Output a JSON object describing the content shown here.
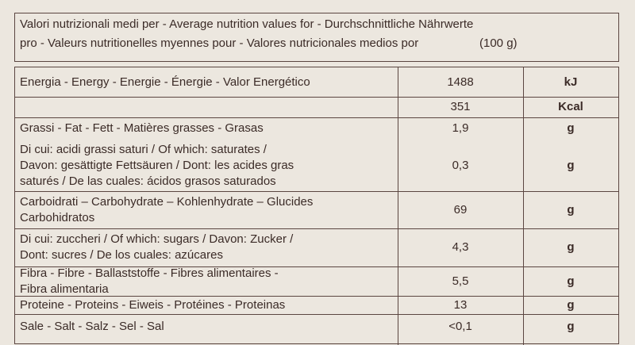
{
  "header": {
    "lines": [
      "Valori nutrizionali medi per - Average nutrition values for - Durchschnittliche Nährwerte",
      "pro - Valeurs nutritionelles myennes pour - Valores nutricionales medios por",
      "(100 g)"
    ]
  },
  "table": {
    "rows": [
      {
        "label": [
          "Energia - Energy - Energie - Énergie - Valor Energético"
        ],
        "value": "1488",
        "unit": "kJ"
      },
      {
        "label": [],
        "value": "351",
        "unit": "Kcal"
      },
      {
        "label": [
          "Grassi - Fat - Fett - Matières grasses - Grasas"
        ],
        "value": "1,9",
        "unit": "g"
      },
      {
        "label": [
          "Di cui: acidi grassi saturi / Of which: saturates /",
          "Davon: gesättigte Fettsäuren / Dont: les acides gras",
          "saturés / De las cuales: ácidos grasos saturados"
        ],
        "value": "0,3",
        "unit": "g"
      },
      {
        "label": [
          "Carboidrati – Carbohydrate – Kohlenhydrate – Glucides",
          "Carbohidratos"
        ],
        "value": "69",
        "unit": "g"
      },
      {
        "label": [
          "Di cui: zuccheri / Of which: sugars / Davon: Zucker /",
          "Dont: sucres / De los cuales: azúcares"
        ],
        "value": "4,3",
        "unit": "g"
      },
      {
        "label": [
          "Fibra - Fibre - Ballaststoffe - Fibres alimentaires -",
          "Fibra alimentaria"
        ],
        "value": "5,5",
        "unit": "g"
      },
      {
        "label": [
          "Proteine - Proteins - Eiweis - Protéines - Proteinas"
        ],
        "value": "13",
        "unit": "g"
      },
      {
        "label": [
          "Sale - Salt - Salz - Sel - Sal"
        ],
        "value": "<0,1",
        "unit": "g"
      }
    ]
  }
}
